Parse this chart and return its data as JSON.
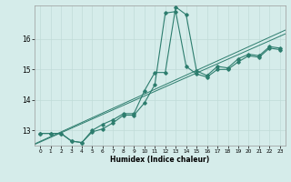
{
  "xlabel": "Humidex (Indice chaleur)",
  "x": [
    0,
    1,
    2,
    3,
    4,
    5,
    6,
    7,
    8,
    9,
    10,
    11,
    12,
    13,
    14,
    15,
    16,
    17,
    18,
    19,
    20,
    21,
    22,
    23
  ],
  "y_line1": [
    12.9,
    12.9,
    12.9,
    12.65,
    12.6,
    13.0,
    13.2,
    13.35,
    13.55,
    13.55,
    14.3,
    14.9,
    14.9,
    17.05,
    16.8,
    14.95,
    14.8,
    15.1,
    15.05,
    15.35,
    15.5,
    15.45,
    15.75,
    15.7
  ],
  "y_line2": [
    12.9,
    12.9,
    12.9,
    12.65,
    12.6,
    12.95,
    13.05,
    13.25,
    13.5,
    13.5,
    13.9,
    14.5,
    16.85,
    16.9,
    15.1,
    14.85,
    14.75,
    15.0,
    15.0,
    15.25,
    15.45,
    15.4,
    15.7,
    15.65
  ],
  "color": "#2d7d6e",
  "bg_color": "#d5ecea",
  "grid_color": "#c0dcd8",
  "ylim": [
    12.5,
    17.1
  ],
  "xlim": [
    -0.5,
    23.5
  ],
  "yticks": [
    13,
    14,
    15,
    16
  ],
  "xticks": [
    0,
    1,
    2,
    3,
    4,
    5,
    6,
    7,
    8,
    9,
    10,
    11,
    12,
    13,
    14,
    15,
    16,
    17,
    18,
    19,
    20,
    21,
    22,
    23
  ]
}
